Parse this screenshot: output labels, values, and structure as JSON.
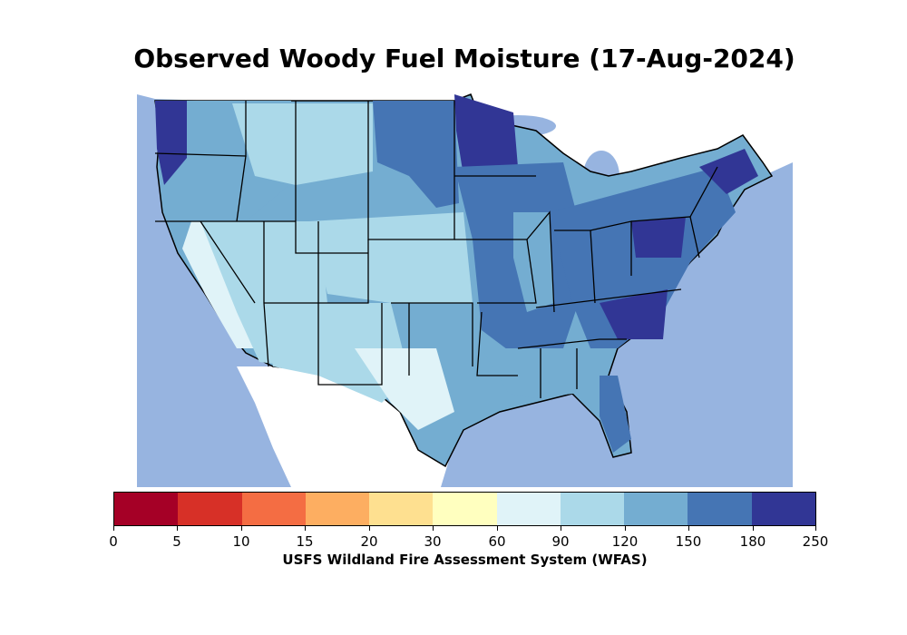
{
  "title": "Observed Woody Fuel Moisture (17-Aug-2024)",
  "colorbar": {
    "label": "USFS Wildland Fire Assessment System (WFAS)",
    "ticks": [
      "0",
      "5",
      "10",
      "15",
      "20",
      "30",
      "60",
      "90",
      "120",
      "150",
      "180",
      "250"
    ],
    "colors": [
      "#a50026",
      "#d73027",
      "#f46d43",
      "#fdae61",
      "#fee090",
      "#ffffbf",
      "#e0f3f8",
      "#abd9e9",
      "#74add1",
      "#4575b4",
      "#313695"
    ]
  },
  "map": {
    "ocean_color": "#97b4e0",
    "land_outside_color": "#ffffff",
    "border_color": "#000000"
  }
}
